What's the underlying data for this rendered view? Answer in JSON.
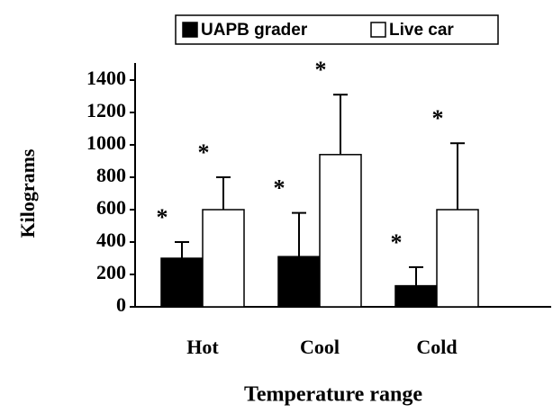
{
  "chart_data": {
    "type": "bar",
    "x_label": "Temperature range",
    "y_label": "Kilograms",
    "categories": [
      "Hot",
      "Cool",
      "Cold"
    ],
    "series": [
      {
        "name": "UAPB grader",
        "color": "#000000",
        "values": [
          300,
          310,
          130
        ],
        "errors": [
          100,
          270,
          115
        ],
        "markers": [
          "*",
          "*",
          "*"
        ]
      },
      {
        "name": "Live car",
        "color": "#ffffff",
        "values": [
          600,
          940,
          600
        ],
        "errors": [
          200,
          370,
          410
        ],
        "markers": [
          "*",
          "*",
          "*"
        ]
      }
    ],
    "ylim": [
      0,
      1400
    ],
    "yticks": [
      0,
      200,
      400,
      600,
      800,
      1000,
      1200,
      1400
    ],
    "legend": "top"
  }
}
